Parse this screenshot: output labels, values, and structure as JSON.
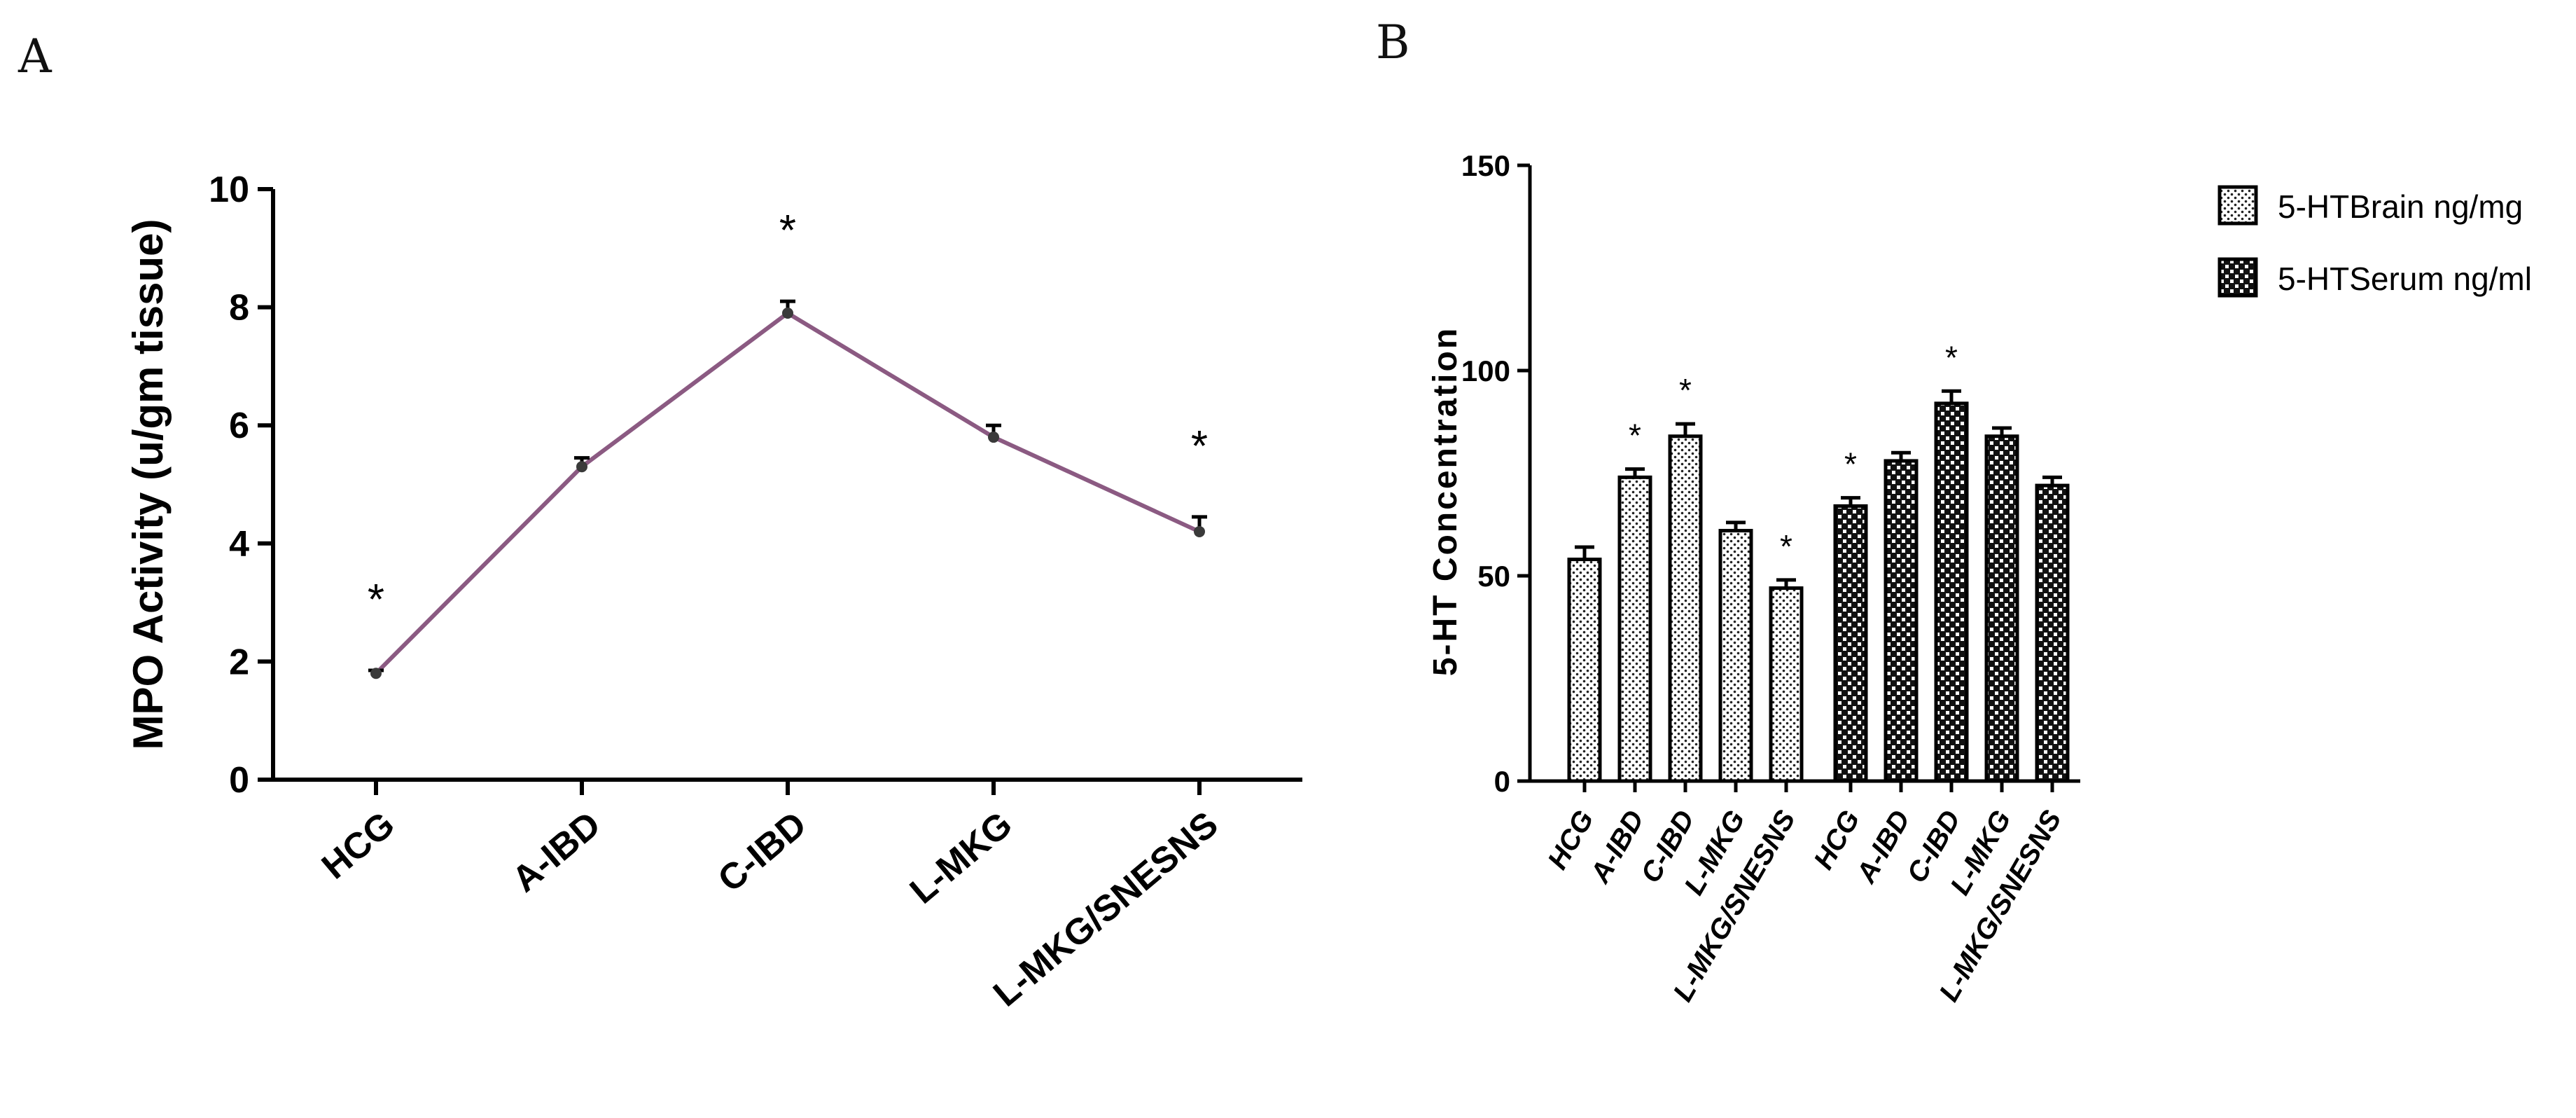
{
  "panels": {
    "a": "A",
    "b": "B"
  },
  "chart_data": [
    {
      "type": "line",
      "panel": "A",
      "ylabel": "MPO Activity (u/gm tissue)",
      "xlabel": "",
      "categories": [
        "HCG",
        "A-IBD",
        "C-IBD",
        "L-MKG",
        "L-MKG/SNESNS"
      ],
      "values": [
        1.8,
        5.3,
        7.9,
        5.8,
        4.2
      ],
      "errors": [
        0.05,
        0.15,
        0.2,
        0.2,
        0.25
      ],
      "yticks": [
        "0",
        "2",
        "4",
        "6",
        "8",
        "10"
      ],
      "ylim": [
        0,
        10
      ],
      "significance": [
        "*",
        "",
        "*",
        "",
        "*"
      ],
      "line_color": "#8b5a82"
    },
    {
      "type": "bar",
      "panel": "B",
      "ylabel": "5-HT Concentration",
      "xlabel": "",
      "categories": [
        "HCG",
        "A-IBD",
        "C-IBD",
        "L-MKG",
        "L-MKG/SNESNS"
      ],
      "series": [
        {
          "name": "5-HTBrain ng/mg",
          "values": [
            54,
            74,
            84,
            61,
            47
          ],
          "errors": [
            3,
            2,
            3,
            2,
            2
          ],
          "significance": [
            "",
            "*",
            "*",
            "",
            "*"
          ],
          "pattern": "dots"
        },
        {
          "name": "5-HTSerum ng/ml",
          "values": [
            67,
            78,
            92,
            84,
            72
          ],
          "errors": [
            2,
            2,
            3,
            2,
            2
          ],
          "significance": [
            "*",
            "",
            "*",
            "",
            ""
          ],
          "pattern": "checker"
        }
      ],
      "yticks": [
        "0",
        "50",
        "100",
        "150"
      ],
      "ylim": [
        0,
        150
      ],
      "legend_position": "top-right"
    }
  ]
}
